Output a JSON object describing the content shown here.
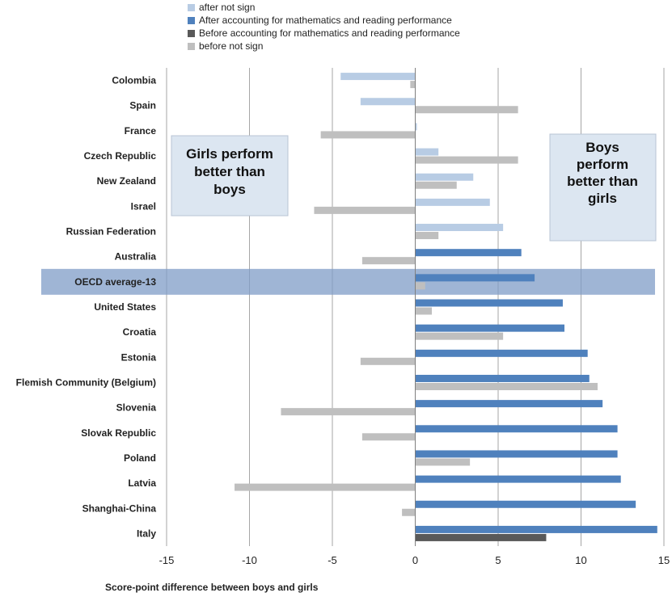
{
  "chart_data": {
    "type": "bar",
    "orientation": "horizontal",
    "xlabel": "Score-point difference between boys  and girls",
    "xlim": [
      -15,
      15
    ],
    "xticks": [
      -15,
      -10,
      -5,
      0,
      5,
      10,
      15
    ],
    "grid": true,
    "legend_position": "top-left",
    "categories": [
      "Colombia",
      "Spain",
      "France",
      "Czech Republic",
      "New Zealand",
      "Israel",
      "Russian Federation",
      "Australia",
      "OECD average-13",
      "United States",
      "Croatia",
      "Estonia",
      "Flemish Community (Belgium)",
      "Slovenia",
      "Slovak Republic",
      "Poland",
      "Latvia",
      "Shanghai-China",
      "Italy"
    ],
    "highlighted_category": "OECD average-13",
    "series_after": [
      {
        "name": "after not sign",
        "color": "#b8cce4",
        "values": [
          -4.5,
          -3.3,
          0.1,
          1.4,
          3.5,
          4.5,
          5.3,
          null,
          null,
          null,
          null,
          null,
          null,
          null,
          null,
          null,
          null,
          null,
          null
        ]
      },
      {
        "name": "After accounting for mathematics and reading performance",
        "color": "#4f81bd",
        "values": [
          null,
          null,
          null,
          null,
          null,
          null,
          null,
          6.4,
          7.2,
          8.9,
          9.0,
          10.4,
          10.5,
          11.3,
          12.2,
          12.2,
          12.4,
          13.3,
          14.6
        ]
      }
    ],
    "series_before": [
      {
        "name": "Before accounting for mathematics and reading performance",
        "color": "#595959",
        "values": [
          null,
          null,
          null,
          null,
          null,
          null,
          null,
          null,
          null,
          null,
          null,
          null,
          null,
          null,
          null,
          null,
          null,
          null,
          7.9
        ]
      },
      {
        "name": "before not sign",
        "color": "#bfbfbf",
        "values": [
          -0.3,
          6.2,
          -5.7,
          6.2,
          2.5,
          -6.1,
          1.4,
          -3.2,
          0.6,
          1.0,
          5.3,
          -3.3,
          11.0,
          -8.1,
          -3.2,
          3.3,
          -10.9,
          -0.8,
          null
        ]
      }
    ],
    "legend_order": [
      "after not sign",
      "After accounting for mathematics and reading performance",
      "Before accounting for mathematics and reading performance",
      "before not sign"
    ],
    "annotations": {
      "girls": [
        "Girls perform",
        "better than",
        "boys"
      ],
      "boys": [
        "Boys",
        "perform",
        "better than",
        "girls"
      ]
    }
  }
}
